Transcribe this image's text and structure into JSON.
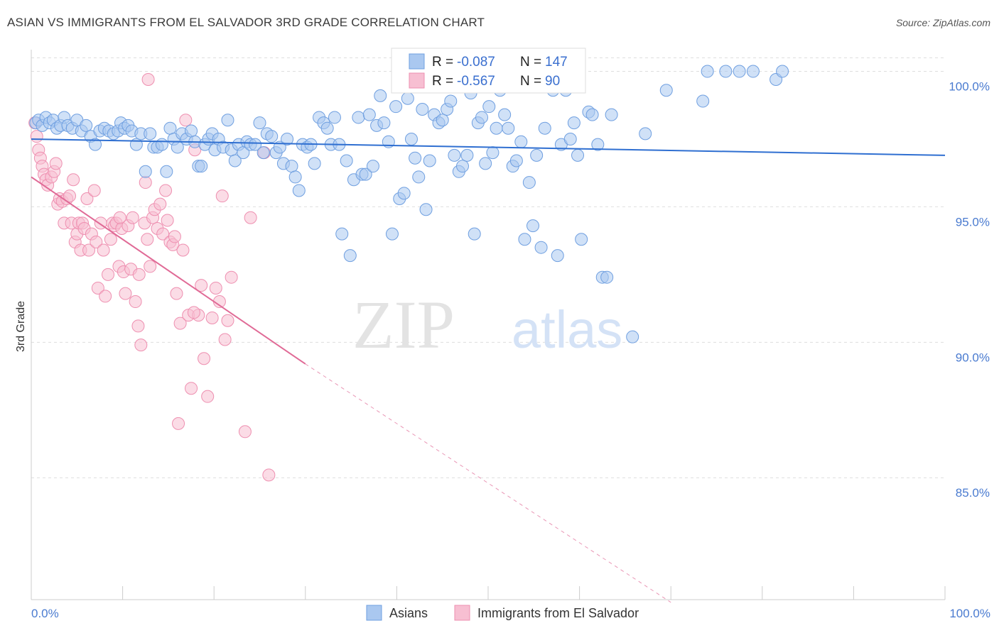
{
  "title": "ASIAN VS IMMIGRANTS FROM EL SALVADOR 3RD GRADE CORRELATION CHART",
  "source": "Source: ZipAtlas.com",
  "watermark": {
    "zip": "ZIP",
    "atlas": "atlas"
  },
  "colors": {
    "blue_fill": "#aac8f0",
    "blue_stroke": "#6f9fe0",
    "blue_line": "#2f6fd1",
    "pink_fill": "#f7bfd2",
    "pink_stroke": "#ee8fb0",
    "pink_line": "#e06a96",
    "grid": "#dedede",
    "axis_text": "#4a7bd0"
  },
  "stats": [
    {
      "r_label": "R =",
      "r_value": "-0.087",
      "n_label": "N =",
      "n_value": "147"
    },
    {
      "r_label": "R =",
      "r_value": "-0.567",
      "n_label": "N =",
      "n_value": "90"
    }
  ],
  "legend": [
    "Asians",
    "Immigrants from El Salvador"
  ],
  "chart_data": {
    "type": "scatter",
    "ylabel": "3rd Grade",
    "xlabel": "",
    "xlim": [
      0,
      100
    ],
    "ylim": [
      80.5,
      100.8
    ],
    "x_tick_labels": [
      "0.0%",
      "100.0%"
    ],
    "y_ticks": [
      {
        "value": 100,
        "label": "100.0%"
      },
      {
        "value": 95,
        "label": "95.0%"
      },
      {
        "value": 90,
        "label": "90.0%"
      },
      {
        "value": 85,
        "label": "85.0%"
      }
    ],
    "series": [
      {
        "name": "Asians",
        "trend": {
          "x0": 0,
          "y0": 97.5,
          "x1": 100,
          "y1": 96.9,
          "dashed_to": null
        },
        "points": [
          [
            0.5,
            98.1
          ],
          [
            0.8,
            98.2
          ],
          [
            1.2,
            98.0
          ],
          [
            1.6,
            98.3
          ],
          [
            2.0,
            98.1
          ],
          [
            2.4,
            98.2
          ],
          [
            2.8,
            97.9
          ],
          [
            3.2,
            98.0
          ],
          [
            3.6,
            98.3
          ],
          [
            4.0,
            98.0
          ],
          [
            4.5,
            97.9
          ],
          [
            5.0,
            98.2
          ],
          [
            5.5,
            97.8
          ],
          [
            6.0,
            98.0
          ],
          [
            6.5,
            97.6
          ],
          [
            7.0,
            97.3
          ],
          [
            7.5,
            97.8
          ],
          [
            8.0,
            97.9
          ],
          [
            8.5,
            97.8
          ],
          [
            9.0,
            97.7
          ],
          [
            9.5,
            97.8
          ],
          [
            9.8,
            98.1
          ],
          [
            10.2,
            97.9
          ],
          [
            10.6,
            98.0
          ],
          [
            11.0,
            97.8
          ],
          [
            11.5,
            97.3
          ],
          [
            12.0,
            97.7
          ],
          [
            12.5,
            96.3
          ],
          [
            13.0,
            97.7
          ],
          [
            13.4,
            97.2
          ],
          [
            13.8,
            97.2
          ],
          [
            14.3,
            97.3
          ],
          [
            14.8,
            96.3
          ],
          [
            15.2,
            97.9
          ],
          [
            15.6,
            97.5
          ],
          [
            16.0,
            97.2
          ],
          [
            16.5,
            97.7
          ],
          [
            17.0,
            97.5
          ],
          [
            17.5,
            97.8
          ],
          [
            17.9,
            97.4
          ],
          [
            18.3,
            96.5
          ],
          [
            18.6,
            96.5
          ],
          [
            19.0,
            97.3
          ],
          [
            19.4,
            97.5
          ],
          [
            19.8,
            97.7
          ],
          [
            20.1,
            97.1
          ],
          [
            20.5,
            97.5
          ],
          [
            21.0,
            97.2
          ],
          [
            21.5,
            98.2
          ],
          [
            21.9,
            97.1
          ],
          [
            22.3,
            96.7
          ],
          [
            22.7,
            97.3
          ],
          [
            23.2,
            97.0
          ],
          [
            23.6,
            97.4
          ],
          [
            24.0,
            97.3
          ],
          [
            24.5,
            97.3
          ],
          [
            25.0,
            98.1
          ],
          [
            25.4,
            97.0
          ],
          [
            25.8,
            97.7
          ],
          [
            26.3,
            97.6
          ],
          [
            26.8,
            97.0
          ],
          [
            27.2,
            97.2
          ],
          [
            27.6,
            96.6
          ],
          [
            28.0,
            97.5
          ],
          [
            28.5,
            96.5
          ],
          [
            28.9,
            96.1
          ],
          [
            29.3,
            95.6
          ],
          [
            29.7,
            97.3
          ],
          [
            30.2,
            97.2
          ],
          [
            30.6,
            97.3
          ],
          [
            31.0,
            96.6
          ],
          [
            31.5,
            98.3
          ],
          [
            32.0,
            98.1
          ],
          [
            32.4,
            97.9
          ],
          [
            32.8,
            97.3
          ],
          [
            33.2,
            98.3
          ],
          [
            33.7,
            97.3
          ],
          [
            34.0,
            94.0
          ],
          [
            34.5,
            96.7
          ],
          [
            34.9,
            93.2
          ],
          [
            35.3,
            96.0
          ],
          [
            35.8,
            98.3
          ],
          [
            36.2,
            96.2
          ],
          [
            36.6,
            96.2
          ],
          [
            37.0,
            98.4
          ],
          [
            37.4,
            96.5
          ],
          [
            37.8,
            98.0
          ],
          [
            38.2,
            99.1
          ],
          [
            38.6,
            98.1
          ],
          [
            39.1,
            97.4
          ],
          [
            39.5,
            94.0
          ],
          [
            39.9,
            98.7
          ],
          [
            40.3,
            95.3
          ],
          [
            40.8,
            95.5
          ],
          [
            41.2,
            99.0
          ],
          [
            41.6,
            97.5
          ],
          [
            42.0,
            96.8
          ],
          [
            42.4,
            96.1
          ],
          [
            42.8,
            98.6
          ],
          [
            43.2,
            94.9
          ],
          [
            43.6,
            96.7
          ],
          [
            44.1,
            98.4
          ],
          [
            44.6,
            98.1
          ],
          [
            45.0,
            98.2
          ],
          [
            45.5,
            98.6
          ],
          [
            45.9,
            98.9
          ],
          [
            46.3,
            96.9
          ],
          [
            46.8,
            96.3
          ],
          [
            47.2,
            96.5
          ],
          [
            47.7,
            96.9
          ],
          [
            48.1,
            99.2
          ],
          [
            48.5,
            94.0
          ],
          [
            48.9,
            98.1
          ],
          [
            49.3,
            98.3
          ],
          [
            49.7,
            96.6
          ],
          [
            50.1,
            98.7
          ],
          [
            50.5,
            97.0
          ],
          [
            50.9,
            97.9
          ],
          [
            51.3,
            99.3
          ],
          [
            51.8,
            98.4
          ],
          [
            52.2,
            97.9
          ],
          [
            52.7,
            96.5
          ],
          [
            53.1,
            96.7
          ],
          [
            53.6,
            97.4
          ],
          [
            54.0,
            93.8
          ],
          [
            54.5,
            95.9
          ],
          [
            54.9,
            94.3
          ],
          [
            55.3,
            96.9
          ],
          [
            55.8,
            93.5
          ],
          [
            56.2,
            97.9
          ],
          [
            57.1,
            99.3
          ],
          [
            57.6,
            93.2
          ],
          [
            58.0,
            97.3
          ],
          [
            58.5,
            99.3
          ],
          [
            59.0,
            97.5
          ],
          [
            59.4,
            98.1
          ],
          [
            59.8,
            96.9
          ],
          [
            60.2,
            93.8
          ],
          [
            61.0,
            98.5
          ],
          [
            61.4,
            98.4
          ],
          [
            62.0,
            97.3
          ],
          [
            62.5,
            92.4
          ],
          [
            63.0,
            92.4
          ],
          [
            63.5,
            98.4
          ],
          [
            65.8,
            90.2
          ],
          [
            67.2,
            97.7
          ],
          [
            69.5,
            99.3
          ],
          [
            73.5,
            98.9
          ],
          [
            74.0,
            100.0
          ],
          [
            76.0,
            100.0
          ],
          [
            77.5,
            100.0
          ],
          [
            79.0,
            100.0
          ],
          [
            81.5,
            99.7
          ],
          [
            82.2,
            100.0
          ]
        ]
      },
      {
        "name": "Immigrants from El Salvador",
        "trend": {
          "x0": 0,
          "y0": 96.1,
          "x1": 30,
          "y1": 89.2,
          "dashed_to": [
            70,
            80.4
          ]
        },
        "points": [
          [
            0.4,
            98.1
          ],
          [
            0.6,
            97.6
          ],
          [
            0.8,
            97.1
          ],
          [
            1.0,
            96.8
          ],
          [
            1.2,
            96.5
          ],
          [
            1.4,
            96.2
          ],
          [
            1.6,
            96.0
          ],
          [
            1.8,
            95.8
          ],
          [
            2.2,
            96.1
          ],
          [
            2.5,
            96.3
          ],
          [
            2.7,
            96.6
          ],
          [
            2.9,
            95.1
          ],
          [
            3.1,
            95.3
          ],
          [
            3.4,
            95.2
          ],
          [
            3.6,
            94.4
          ],
          [
            3.9,
            95.3
          ],
          [
            4.2,
            95.4
          ],
          [
            4.4,
            94.4
          ],
          [
            4.6,
            96.0
          ],
          [
            4.8,
            93.7
          ],
          [
            5.0,
            94.0
          ],
          [
            5.2,
            94.4
          ],
          [
            5.4,
            93.4
          ],
          [
            5.6,
            94.4
          ],
          [
            5.8,
            94.2
          ],
          [
            6.1,
            95.3
          ],
          [
            6.3,
            93.4
          ],
          [
            6.6,
            94.0
          ],
          [
            6.9,
            95.6
          ],
          [
            7.1,
            93.7
          ],
          [
            7.3,
            92.0
          ],
          [
            7.6,
            94.4
          ],
          [
            7.9,
            93.4
          ],
          [
            8.1,
            91.7
          ],
          [
            8.4,
            92.5
          ],
          [
            8.7,
            93.8
          ],
          [
            8.9,
            94.4
          ],
          [
            9.1,
            94.3
          ],
          [
            9.3,
            94.4
          ],
          [
            9.6,
            92.8
          ],
          [
            9.9,
            94.2
          ],
          [
            10.1,
            92.6
          ],
          [
            10.3,
            91.8
          ],
          [
            10.6,
            94.3
          ],
          [
            10.9,
            92.7
          ],
          [
            11.1,
            94.6
          ],
          [
            11.4,
            91.5
          ],
          [
            11.7,
            90.6
          ],
          [
            12.0,
            89.9
          ],
          [
            12.4,
            94.4
          ],
          [
            12.7,
            93.8
          ],
          [
            13.0,
            92.8
          ],
          [
            13.3,
            94.6
          ],
          [
            13.5,
            94.9
          ],
          [
            13.8,
            94.2
          ],
          [
            14.1,
            95.1
          ],
          [
            14.4,
            94.0
          ],
          [
            14.7,
            95.6
          ],
          [
            14.9,
            94.5
          ],
          [
            15.2,
            93.7
          ],
          [
            15.5,
            93.6
          ],
          [
            15.7,
            93.9
          ],
          [
            15.9,
            91.8
          ],
          [
            16.1,
            87.0
          ],
          [
            16.3,
            90.7
          ],
          [
            16.6,
            93.4
          ],
          [
            16.9,
            98.2
          ],
          [
            17.2,
            91.0
          ],
          [
            17.5,
            88.3
          ],
          [
            17.9,
            97.1
          ],
          [
            18.3,
            91.0
          ],
          [
            18.6,
            92.1
          ],
          [
            18.9,
            89.4
          ],
          [
            19.3,
            88.0
          ],
          [
            19.8,
            90.9
          ],
          [
            20.2,
            92.0
          ],
          [
            20.6,
            91.5
          ],
          [
            20.9,
            95.4
          ],
          [
            21.2,
            90.1
          ],
          [
            21.5,
            90.8
          ],
          [
            21.9,
            92.4
          ],
          [
            23.4,
            86.7
          ],
          [
            24.0,
            94.6
          ],
          [
            25.5,
            97.0
          ],
          [
            26.0,
            85.1
          ],
          [
            12.8,
            99.7
          ],
          [
            12.5,
            95.9
          ],
          [
            11.8,
            92.5
          ],
          [
            9.7,
            94.6
          ],
          [
            17.8,
            91.1
          ]
        ]
      }
    ]
  }
}
